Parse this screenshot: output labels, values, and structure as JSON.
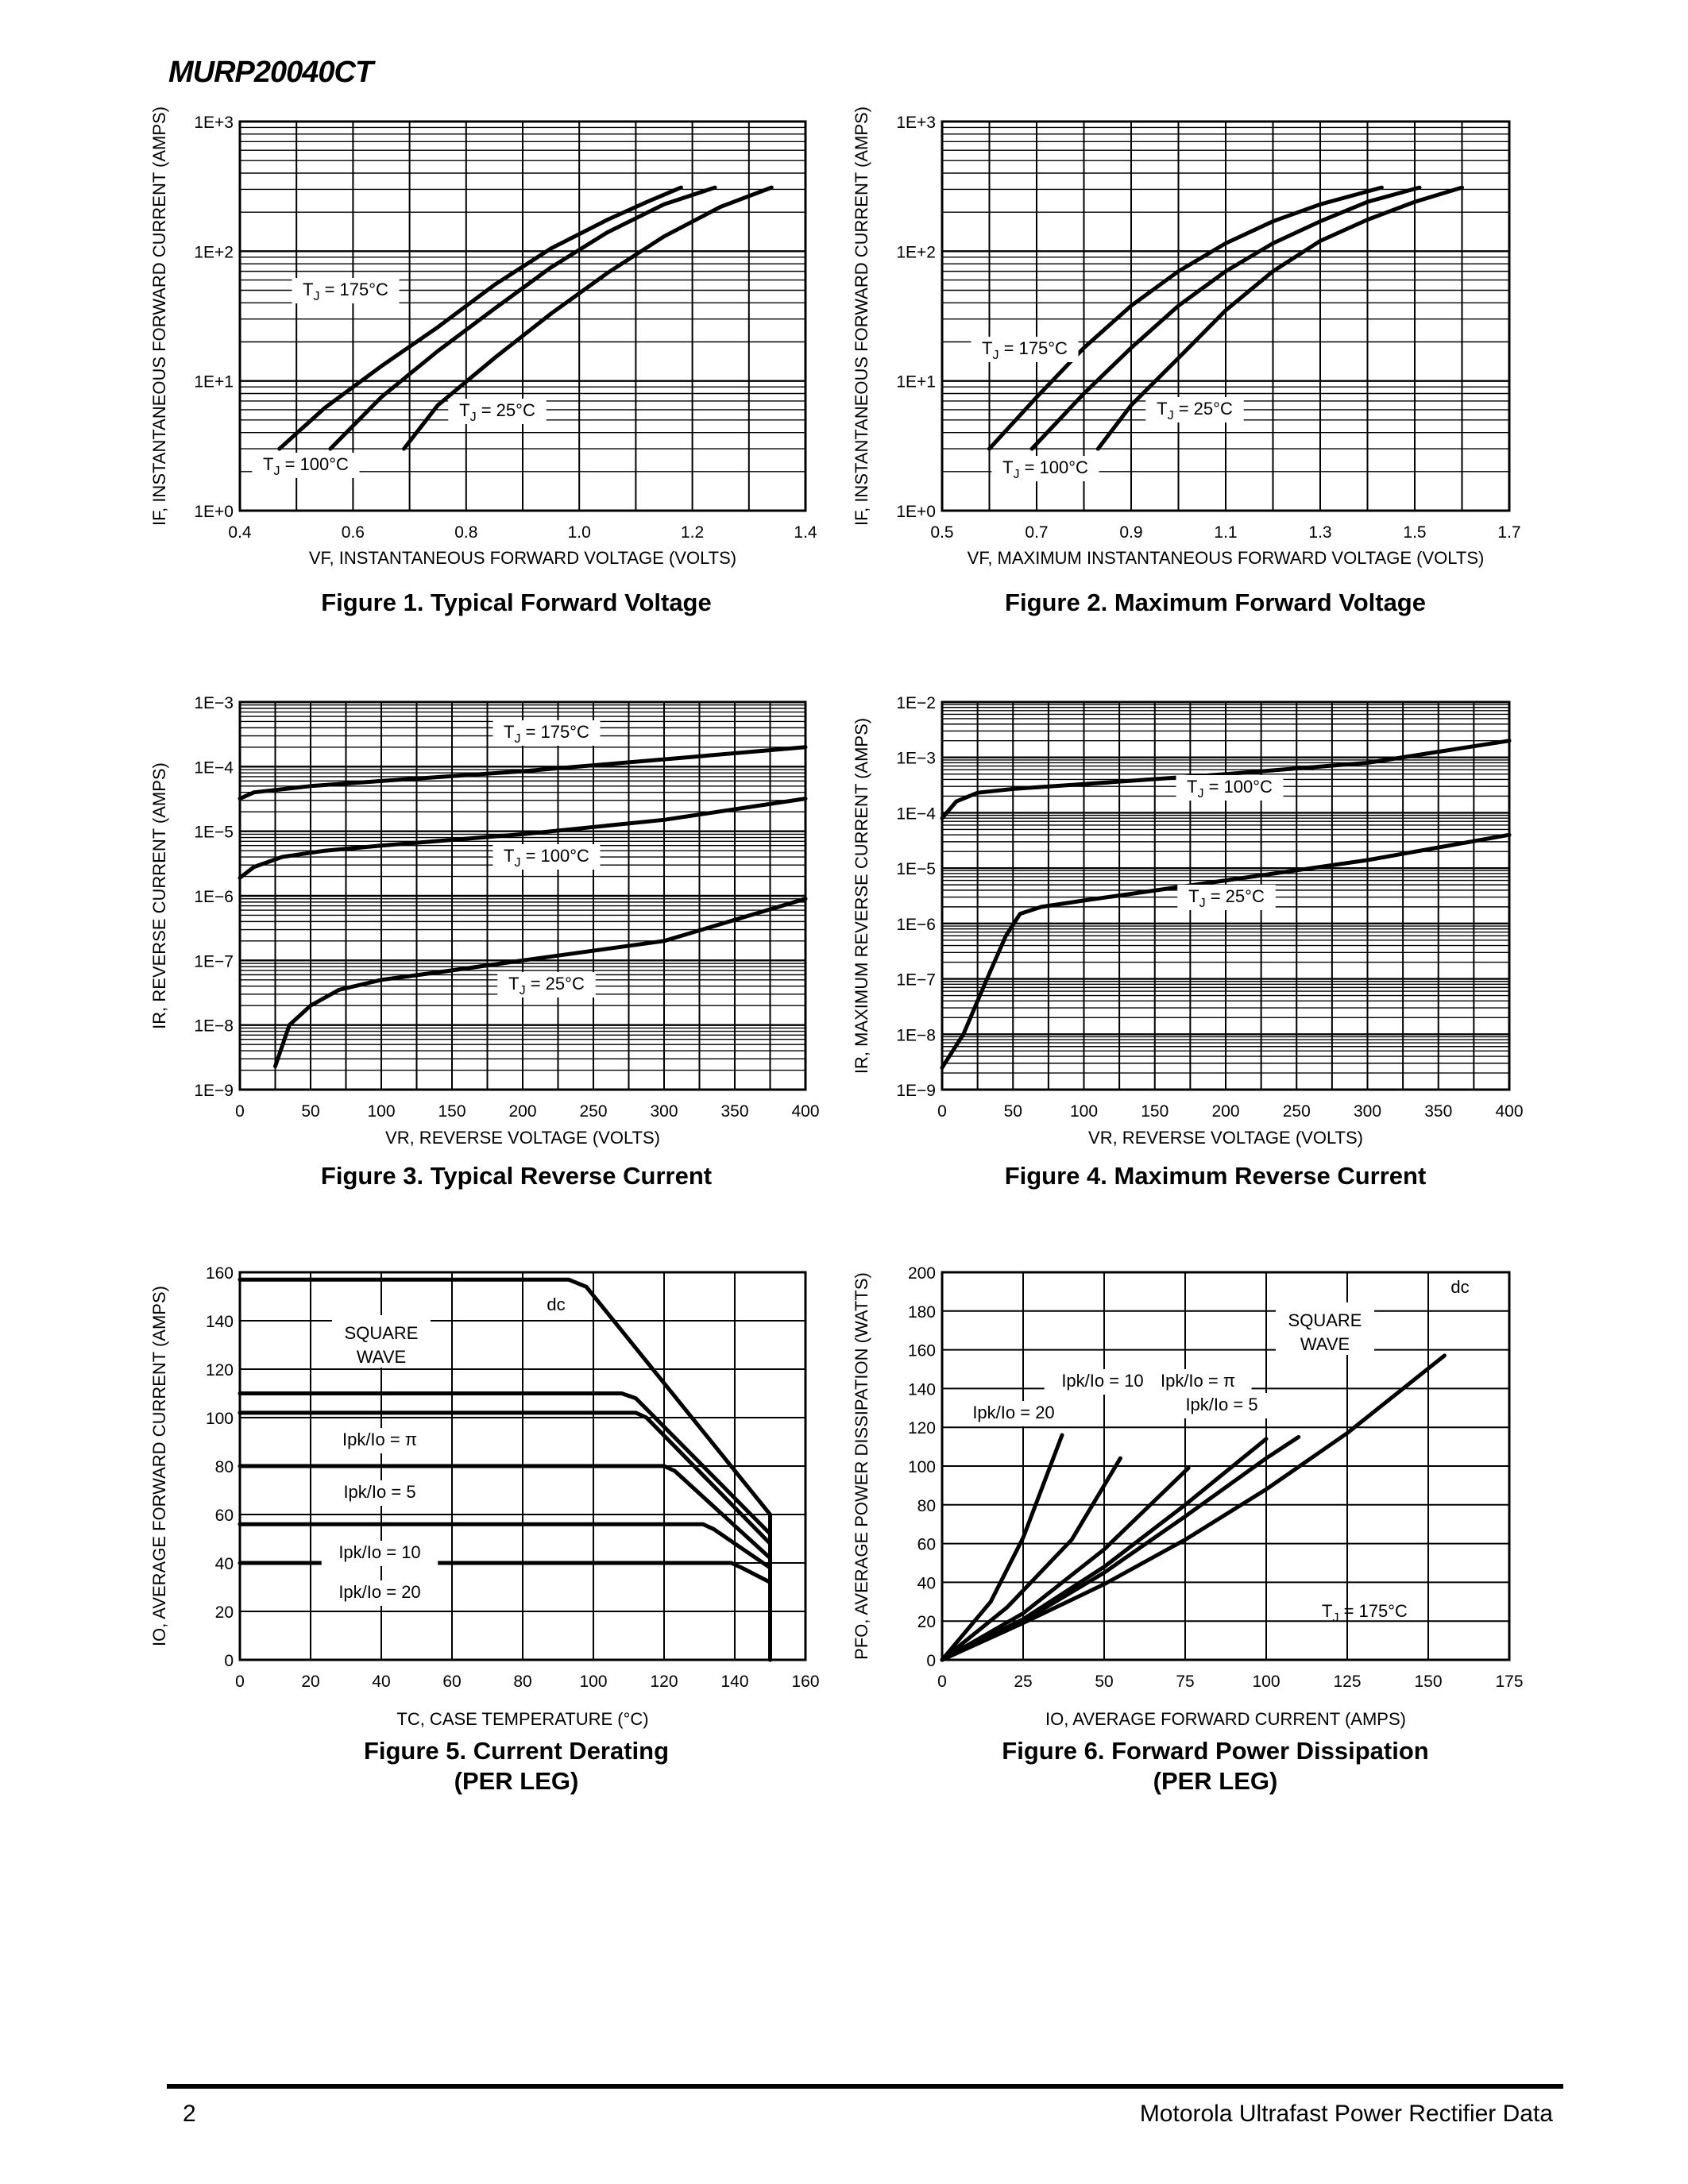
{
  "header": {
    "part_number": "MURP20040CT"
  },
  "footer": {
    "page_number": "2",
    "publication": "Motorola Ultrafast Power Rectifier Data"
  },
  "figures": [
    {
      "caption": "Figure 1. Typical Forward Voltage"
    },
    {
      "caption": "Figure 2. Maximum Forward Voltage"
    },
    {
      "caption": "Figure 3. Typical Reverse Current"
    },
    {
      "caption": "Figure 4. Maximum Reverse Current"
    },
    {
      "caption": "Figure 5. Current Derating",
      "caption2": "(PER LEG)"
    },
    {
      "caption": "Figure 6. Forward Power Dissipation",
      "caption2": "(PER LEG)"
    }
  ],
  "chart_data": [
    {
      "type": "line",
      "yscale": "log",
      "title": "Figure 1. Typical Forward Voltage",
      "xlabel": "VF, INSTANTANEOUS FORWARD VOLTAGE (VOLTS)",
      "ylabel": "IF, INSTANTANEOUS FORWARD CURRENT (AMPS)",
      "xlim": [
        0.4,
        1.4
      ],
      "ylim": [
        1,
        1000
      ],
      "xticks": [
        0.4,
        0.6,
        0.8,
        1.0,
        1.2,
        1.4
      ],
      "xtick_labels": [
        "0.4",
        "0.6",
        "0.8",
        "1.0",
        "1.2",
        "1.4"
      ],
      "yticks": [
        1,
        10,
        100,
        1000
      ],
      "ytick_labels": [
        "1E+0",
        "1E+1",
        "1E+2",
        "1E+3"
      ],
      "series": [
        {
          "name": "TJ = 175°C",
          "label": "T_J = 175°C",
          "x": [
            0.47,
            0.55,
            0.65,
            0.75,
            0.85,
            0.95,
            1.05,
            1.12,
            1.18
          ],
          "y": [
            3.0,
            6.2,
            13,
            26,
            55,
            105,
            175,
            240,
            310
          ]
        },
        {
          "name": "TJ = 100°C",
          "label": "T_J = 100°C",
          "x": [
            0.56,
            0.65,
            0.75,
            0.85,
            0.95,
            1.05,
            1.15,
            1.24
          ],
          "y": [
            3.0,
            7.5,
            17,
            36,
            75,
            140,
            230,
            310
          ]
        },
        {
          "name": "TJ = 25°C",
          "label": "T_J = 25°C",
          "x": [
            0.69,
            0.75,
            0.85,
            0.95,
            1.05,
            1.15,
            1.25,
            1.34
          ],
          "y": [
            3.0,
            6.5,
            15,
            33,
            68,
            130,
            220,
            310
          ]
        }
      ]
    },
    {
      "type": "line",
      "yscale": "log",
      "title": "Figure 2. Maximum Forward Voltage",
      "xlabel": "VF, MAXIMUM INSTANTANEOUS FORWARD VOLTAGE (VOLTS)",
      "ylabel": "IF, INSTANTANEOUS FORWARD CURRENT (AMPS)",
      "xlim": [
        0.5,
        1.7
      ],
      "ylim": [
        1,
        1000
      ],
      "xticks": [
        0.5,
        0.7,
        0.9,
        1.1,
        1.3,
        1.5,
        1.7
      ],
      "xtick_labels": [
        "0.5",
        "0.7",
        "0.9",
        "1.1",
        "1.3",
        "1.5",
        "1.7"
      ],
      "yticks": [
        1,
        10,
        100,
        1000
      ],
      "ytick_labels": [
        "1E+0",
        "1E+1",
        "1E+2",
        "1E+3"
      ],
      "series": [
        {
          "name": "TJ = 175°C",
          "label": "T_J = 175°C",
          "x": [
            0.6,
            0.7,
            0.8,
            0.9,
            1.0,
            1.1,
            1.2,
            1.3,
            1.43
          ],
          "y": [
            3.0,
            7.5,
            18,
            38,
            70,
            115,
            170,
            230,
            310
          ]
        },
        {
          "name": "TJ = 100°C",
          "label": "T_J = 100°C",
          "x": [
            0.69,
            0.8,
            0.9,
            1.0,
            1.1,
            1.2,
            1.3,
            1.4,
            1.51
          ],
          "y": [
            3.0,
            8.0,
            18,
            38,
            70,
            115,
            170,
            240,
            310
          ]
        },
        {
          "name": "TJ = 25°C",
          "label": "T_J = 25°C",
          "x": [
            0.83,
            0.9,
            1.0,
            1.1,
            1.2,
            1.3,
            1.4,
            1.5,
            1.6
          ],
          "y": [
            3.0,
            6.5,
            15,
            35,
            70,
            120,
            175,
            240,
            310
          ]
        }
      ]
    },
    {
      "type": "line",
      "yscale": "log",
      "title": "Figure 3. Typical Reverse Current",
      "xlabel": "VR, REVERSE VOLTAGE (VOLTS)",
      "ylabel": "IR, REVERSE CURRENT (AMPS)",
      "xlim": [
        0,
        400
      ],
      "ylim": [
        1e-09,
        0.001
      ],
      "xticks": [
        0,
        50,
        100,
        150,
        200,
        250,
        300,
        350,
        400
      ],
      "xtick_labels": [
        "0",
        "50",
        "100",
        "150",
        "200",
        "250",
        "300",
        "350",
        "400"
      ],
      "yticks": [
        1e-09,
        1e-08,
        1e-07,
        1e-06,
        1e-05,
        0.0001,
        0.001
      ],
      "ytick_labels": [
        "1E−9",
        "1E−8",
        "1E−7",
        "1E−6",
        "1E−5",
        "1E−4",
        "1E−3"
      ],
      "series": [
        {
          "name": "TJ = 175°C",
          "label": "T_J = 175°C",
          "x": [
            0,
            10,
            50,
            100,
            200,
            300,
            400
          ],
          "y": [
            3.2e-05,
            4e-05,
            5e-05,
            6e-05,
            8.5e-05,
            0.00013,
            0.0002
          ]
        },
        {
          "name": "TJ = 100°C",
          "label": "T_J = 100°C",
          "x": [
            0,
            10,
            30,
            60,
            100,
            200,
            300,
            400
          ],
          "y": [
            1.9e-06,
            2.8e-06,
            4e-06,
            5e-06,
            6e-06,
            9e-06,
            1.5e-05,
            3.2e-05
          ]
        },
        {
          "name": "TJ = 25°C",
          "label": "T_J = 25°C",
          "x": [
            25,
            35,
            50,
            70,
            100,
            150,
            200,
            300,
            400
          ],
          "y": [
            2.3e-09,
            1e-08,
            2e-08,
            3.5e-08,
            5e-08,
            7e-08,
            1e-07,
            2e-07,
            9e-07
          ]
        }
      ]
    },
    {
      "type": "line",
      "yscale": "log",
      "title": "Figure 4. Maximum Reverse Current",
      "xlabel": "VR, REVERSE VOLTAGE (VOLTS)",
      "ylabel": "IR, MAXIMUM REVERSE CURRENT (AMPS)",
      "xlim": [
        0,
        400
      ],
      "ylim": [
        1e-09,
        0.01
      ],
      "xticks": [
        0,
        50,
        100,
        150,
        200,
        250,
        300,
        350,
        400
      ],
      "xtick_labels": [
        "0",
        "50",
        "100",
        "150",
        "200",
        "250",
        "300",
        "350",
        "400"
      ],
      "yticks": [
        1e-09,
        1e-08,
        1e-07,
        1e-06,
        1e-05,
        0.0001,
        0.001,
        0.01
      ],
      "ytick_labels": [
        "1E−9",
        "1E−8",
        "1E−7",
        "1E−6",
        "1E−5",
        "1E−4",
        "1E−3",
        "1E−2"
      ],
      "series": [
        {
          "name": "TJ = 100°C",
          "label": "T_J = 100°C",
          "x": [
            0,
            10,
            25,
            50,
            100,
            200,
            300,
            400
          ],
          "y": [
            8e-05,
            0.00016,
            0.00023,
            0.00027,
            0.00033,
            0.0005,
            0.0008,
            0.002
          ]
        },
        {
          "name": "TJ = 25°C",
          "label": "T_J = 25°C",
          "x": [
            0,
            15,
            30,
            45,
            55,
            70,
            100,
            200,
            300,
            400
          ],
          "y": [
            2.5e-09,
            1e-08,
            8e-08,
            6e-07,
            1.5e-06,
            2e-06,
            2.6e-06,
            6e-06,
            1.4e-05,
            4e-05
          ]
        }
      ]
    },
    {
      "type": "line",
      "title": "Figure 5. Current Derating (PER LEG)",
      "xlabel": "TC, CASE TEMPERATURE (°C)",
      "ylabel": "IO, AVERAGE FORWARD CURRENT (AMPS)",
      "xlim": [
        0,
        160
      ],
      "ylim": [
        0,
        160
      ],
      "xticks": [
        0,
        20,
        40,
        60,
        80,
        100,
        120,
        140,
        160
      ],
      "xtick_labels": [
        "0",
        "20",
        "40",
        "60",
        "80",
        "100",
        "120",
        "140",
        "160"
      ],
      "yticks": [
        0,
        20,
        40,
        60,
        80,
        100,
        120,
        140,
        160
      ],
      "ytick_labels": [
        "0",
        "20",
        "40",
        "60",
        "80",
        "100",
        "120",
        "140",
        "160"
      ],
      "series": [
        {
          "name": "dc",
          "label": "dc",
          "x": [
            0,
            93,
            98,
            150,
            150
          ],
          "y": [
            157,
            157,
            154,
            60,
            0
          ]
        },
        {
          "name": "SQUARE WAVE",
          "label": "SQUARE WAVE",
          "x": [
            0,
            108,
            112,
            150,
            150
          ],
          "y": [
            110,
            110,
            108,
            52,
            0
          ]
        },
        {
          "name": "Ipk/Io = π",
          "label": "Ipk/Io = π",
          "x": [
            0,
            112,
            115,
            150,
            150
          ],
          "y": [
            102,
            102,
            100,
            48,
            0
          ]
        },
        {
          "name": "Ipk/Io = 5",
          "label": "Ipk/Io = 5",
          "x": [
            0,
            120,
            123,
            150,
            150
          ],
          "y": [
            80,
            80,
            78,
            42,
            0
          ]
        },
        {
          "name": "Ipk/Io = 10",
          "label": "Ipk/Io = 10",
          "x": [
            0,
            131,
            134,
            150,
            150
          ],
          "y": [
            56,
            56,
            54,
            38,
            0
          ]
        },
        {
          "name": "Ipk/Io = 20",
          "label": "Ipk/Io = 20",
          "x": [
            0,
            139,
            142,
            150,
            150
          ],
          "y": [
            40,
            40,
            38,
            32,
            0
          ]
        }
      ]
    },
    {
      "type": "line",
      "title": "Figure 6. Forward Power Dissipation (PER LEG)",
      "xlabel": "IO, AVERAGE FORWARD CURRENT (AMPS)",
      "ylabel": "PFO, AVERAGE POWER DISSIPATION (WATTS)",
      "xlim": [
        0,
        175
      ],
      "ylim": [
        0,
        200
      ],
      "xticks": [
        0,
        25,
        50,
        75,
        100,
        125,
        150,
        175
      ],
      "xtick_labels": [
        "0",
        "25",
        "50",
        "75",
        "100",
        "125",
        "150",
        "175"
      ],
      "yticks": [
        0,
        20,
        40,
        60,
        80,
        100,
        120,
        140,
        160,
        180,
        200
      ],
      "ytick_labels": [
        "0",
        "20",
        "40",
        "60",
        "80",
        "100",
        "120",
        "140",
        "160",
        "180",
        "200"
      ],
      "annotation": "T_J = 175°C",
      "series": [
        {
          "name": "dc",
          "label": "dc",
          "x": [
            0,
            25,
            50,
            75,
            100,
            125,
            155
          ],
          "y": [
            0,
            19,
            39,
            62,
            88,
            117,
            157
          ]
        },
        {
          "name": "SQUARE WAVE",
          "label": "SQUARE WAVE",
          "x": [
            0,
            25,
            50,
            75,
            100,
            110
          ],
          "y": [
            0,
            20,
            45,
            74,
            104,
            115
          ]
        },
        {
          "name": "Ipk/Io = π",
          "label": "Ipk/Io = π",
          "x": [
            0,
            25,
            50,
            75,
            100
          ],
          "y": [
            0,
            21,
            48,
            80,
            114
          ]
        },
        {
          "name": "Ipk/Io = 5",
          "label": "Ipk/Io = 5",
          "x": [
            0,
            25,
            50,
            76
          ],
          "y": [
            0,
            24,
            57,
            99
          ]
        },
        {
          "name": "Ipk/Io = 10",
          "label": "Ipk/Io = 10",
          "x": [
            0,
            20,
            40,
            55
          ],
          "y": [
            0,
            27,
            62,
            104
          ]
        },
        {
          "name": "Ipk/Io = 20",
          "label": "Ipk/Io = 20",
          "x": [
            0,
            15,
            25,
            37
          ],
          "y": [
            0,
            30,
            63,
            116
          ]
        }
      ]
    }
  ]
}
